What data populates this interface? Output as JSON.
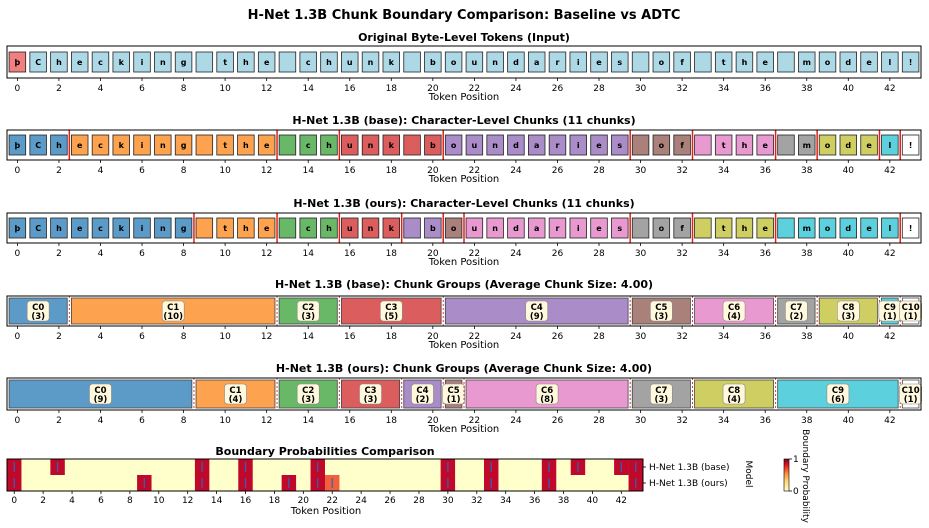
{
  "title": "H-Net 1.3B Chunk Boundary Comparison: Baseline vs ADTC",
  "tokens": [
    "þ",
    "C",
    "h",
    "e",
    "c",
    "k",
    "i",
    "n",
    "g",
    " ",
    "t",
    "h",
    "e",
    " ",
    "c",
    "h",
    "u",
    "n",
    "k",
    " ",
    "b",
    "o",
    "u",
    "n",
    "d",
    "a",
    "r",
    "i",
    "e",
    "s",
    " ",
    "o",
    "f",
    " ",
    "t",
    "h",
    "e",
    " ",
    "m",
    "o",
    "d",
    "e",
    "l",
    "!"
  ],
  "xlabel": "Token Position",
  "xticks": [
    0,
    2,
    4,
    6,
    8,
    10,
    12,
    14,
    16,
    18,
    20,
    22,
    24,
    26,
    28,
    30,
    32,
    34,
    36,
    38,
    40,
    42
  ],
  "colors": {
    "input": "#add8e6",
    "first_token": "#f08080",
    "edge": "#222222",
    "boundary_line": "#e0201a",
    "chunk_palette": [
      "#5c9bc8",
      "#fda24f",
      "#68b868",
      "#dc5d5d",
      "#a98cc8",
      "#a9807a",
      "#e89ad0",
      "#a3a3a3",
      "#cece62",
      "#5cd0dc"
    ]
  },
  "chart_data": [
    {
      "type": "table",
      "title": "Original Byte-Level Tokens (Input)",
      "xlabel": "Token Position",
      "xlim": [
        -0.5,
        43.5
      ],
      "tokens_ref": "tokens"
    },
    {
      "type": "table",
      "title": "H-Net 1.3B (base): Character-Level Chunks (11 chunks)",
      "xlabel": "Token Position",
      "xlim": [
        -0.5,
        43.5
      ],
      "chunk_starts": [
        0,
        3,
        13,
        16,
        21,
        30,
        33,
        37,
        39,
        42,
        43
      ]
    },
    {
      "type": "table",
      "title": "H-Net 1.3B (ours): Character-Level Chunks (11 chunks)",
      "xlabel": "Token Position",
      "xlim": [
        -0.5,
        43.5
      ],
      "chunk_starts": [
        0,
        9,
        13,
        16,
        19,
        21,
        22,
        30,
        33,
        37,
        43
      ]
    },
    {
      "type": "bar",
      "title": "H-Net 1.3B (base): Chunk Groups (Average Chunk Size: 4.00)",
      "xlabel": "Token Position",
      "xlim": [
        -0.5,
        43.5
      ],
      "groups": [
        {
          "label": "C0",
          "size": 3,
          "start": 0
        },
        {
          "label": "C1",
          "size": 10,
          "start": 3
        },
        {
          "label": "C2",
          "size": 3,
          "start": 13
        },
        {
          "label": "C3",
          "size": 5,
          "start": 16
        },
        {
          "label": "C4",
          "size": 9,
          "start": 21
        },
        {
          "label": "C5",
          "size": 3,
          "start": 30
        },
        {
          "label": "C6",
          "size": 4,
          "start": 33
        },
        {
          "label": "C7",
          "size": 2,
          "start": 37
        },
        {
          "label": "C8",
          "size": 3,
          "start": 39
        },
        {
          "label": "C9",
          "size": 1,
          "start": 42
        },
        {
          "label": "C10",
          "size": 1,
          "start": 43
        }
      ]
    },
    {
      "type": "bar",
      "title": "H-Net 1.3B (ours): Chunk Groups (Average Chunk Size: 4.00)",
      "xlabel": "Token Position",
      "xlim": [
        -0.5,
        43.5
      ],
      "groups": [
        {
          "label": "C0",
          "size": 9,
          "start": 0
        },
        {
          "label": "C1",
          "size": 4,
          "start": 9
        },
        {
          "label": "C2",
          "size": 3,
          "start": 13
        },
        {
          "label": "C3",
          "size": 3,
          "start": 16
        },
        {
          "label": "C4",
          "size": 2,
          "start": 19
        },
        {
          "label": "C5",
          "size": 1,
          "start": 21
        },
        {
          "label": "C6",
          "size": 8,
          "start": 22
        },
        {
          "label": "C7",
          "size": 3,
          "start": 30
        },
        {
          "label": "C8",
          "size": 4,
          "start": 33
        },
        {
          "label": "C9",
          "size": 6,
          "start": 37
        },
        {
          "label": "C10",
          "size": 1,
          "start": 43
        }
      ]
    },
    {
      "type": "heatmap",
      "title": "Boundary Probabilities Comparison",
      "xlabel": "Token Position",
      "ylabel": "Model",
      "rows": [
        "H-Net 1.3B (base)",
        "H-Net 1.3B (ours)"
      ],
      "colorbar_label": "Boundary Probability",
      "colorbar_ticks": [
        0,
        1
      ],
      "values": [
        [
          1,
          0,
          0,
          1,
          0,
          0,
          0,
          0,
          0,
          0,
          0,
          0,
          0,
          1,
          0,
          0,
          1,
          0,
          0,
          0,
          0,
          1,
          0,
          0,
          0,
          0,
          0,
          0,
          0,
          0,
          1,
          0,
          0,
          1,
          0,
          0,
          0,
          1,
          0,
          1,
          0,
          0,
          1,
          1
        ],
        [
          1,
          0,
          0,
          0,
          0,
          0,
          0,
          0,
          0,
          1,
          0,
          0,
          0,
          1,
          0,
          0,
          1,
          0,
          0,
          1,
          0,
          1,
          1,
          0,
          0,
          0,
          0,
          0,
          0,
          0,
          1,
          0,
          0,
          1,
          0,
          0,
          0,
          1,
          0,
          0,
          0,
          0,
          0,
          1
        ]
      ],
      "partial_values": [
        {
          "row": 1,
          "col": 22,
          "value": 0.75
        }
      ]
    }
  ]
}
